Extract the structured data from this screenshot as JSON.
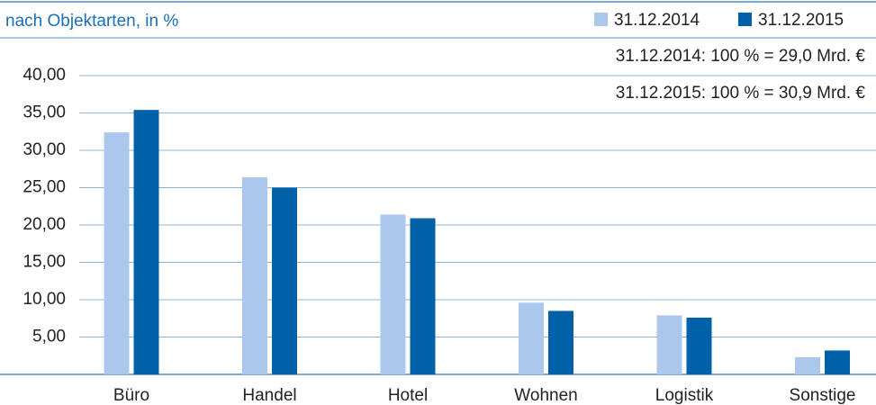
{
  "chart_data": {
    "type": "bar",
    "title": "nach Objektarten, in %",
    "annotations": [
      "31.12.2014: 100 % = 29,0 Mrd. €",
      "31.12.2015: 100 % = 30,9 Mrd. €"
    ],
    "categories": [
      "Büro",
      "Handel",
      "Hotel",
      "Wohnen",
      "Logistik",
      "Sonstige"
    ],
    "series": [
      {
        "name": "31.12.2014",
        "color": "#abc8ec",
        "values": [
          32.4,
          26.4,
          21.4,
          9.6,
          7.9,
          2.3
        ]
      },
      {
        "name": "31.12.2015",
        "color": "#0060a8",
        "values": [
          35.4,
          25.0,
          20.9,
          8.5,
          7.6,
          3.2
        ]
      }
    ],
    "ylim": [
      0,
      40
    ],
    "yticks": [
      {
        "value": 5,
        "label": "5,00"
      },
      {
        "value": 10,
        "label": "10,00"
      },
      {
        "value": 15,
        "label": "15,00"
      },
      {
        "value": 20,
        "label": "20,00"
      },
      {
        "value": 25,
        "label": "25,00"
      },
      {
        "value": 30,
        "label": "30,00"
      },
      {
        "value": 35,
        "label": "35,00"
      },
      {
        "value": 40,
        "label": "40,00"
      }
    ],
    "grid": true
  }
}
